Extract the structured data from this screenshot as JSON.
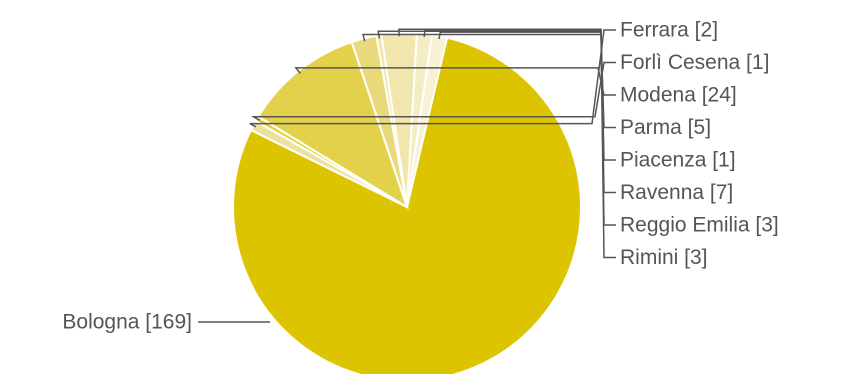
{
  "chart_data": {
    "type": "pie",
    "start_angle_deg": -76.7,
    "slices": [
      {
        "label": "Bologna",
        "value": 169,
        "text": "Bologna [169]",
        "color": "#dcc500",
        "side": "left"
      },
      {
        "label": "Ferrara",
        "value": 2,
        "text": "Ferrara [2]",
        "color": "#ede29c",
        "side": "right"
      },
      {
        "label": "Forlì Cesena",
        "value": 1,
        "text": "Forlì Cesena [1]",
        "color": "#e2cf40",
        "side": "right"
      },
      {
        "label": "Modena",
        "value": 24,
        "text": "Modena [24]",
        "color": "#e3d14c",
        "side": "right"
      },
      {
        "label": "Parma",
        "value": 5,
        "text": "Parma [5]",
        "color": "#ead97a",
        "side": "right"
      },
      {
        "label": "Piacenza",
        "value": 1,
        "text": "Piacenza [1]",
        "color": "#efe5a4",
        "side": "right"
      },
      {
        "label": "Ravenna",
        "value": 7,
        "text": "Ravenna [7]",
        "color": "#f1e7ae",
        "side": "right"
      },
      {
        "label": "Reggio Emilia",
        "value": 3,
        "text": "Reggio Emilia [3]",
        "color": "#f4edc4",
        "side": "right"
      },
      {
        "label": "Rimini",
        "value": 3,
        "text": "Rimini [3]",
        "color": "#f7f2d6",
        "side": "right"
      }
    ]
  }
}
